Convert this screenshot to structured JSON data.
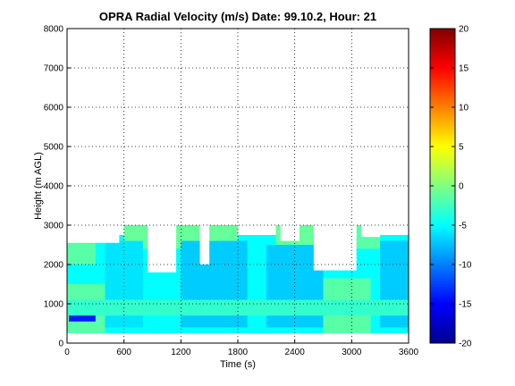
{
  "chart_data": {
    "type": "heatmap",
    "title": "OPRA Radial Velocity (m/s)  Date: 99.10.2, Hour: 21",
    "xlabel": "Time (s)",
    "ylabel": "Height (m AGL)",
    "xlim": [
      0,
      3600
    ],
    "ylim": [
      0,
      8000
    ],
    "xticks": [
      "0",
      "600",
      "1200",
      "1800",
      "2400",
      "3000",
      "3600"
    ],
    "yticks": [
      "0",
      "1000",
      "2000",
      "3000",
      "4000",
      "5000",
      "6000",
      "7000",
      "8000"
    ],
    "grid": true,
    "colorbar": {
      "vmin": -20,
      "vmax": 20,
      "ticks": [
        "20",
        "15",
        "10",
        "5",
        "0",
        "-5",
        "-10",
        "-15",
        "-20"
      ],
      "colormap": "jet"
    },
    "regions": [
      {
        "t0": 0,
        "t1": 3600,
        "h0": 250,
        "h1": 2750,
        "velocity": -5
      },
      {
        "t0": 0,
        "t1": 400,
        "h0": 250,
        "h1": 1500,
        "velocity": -1.5
      },
      {
        "t0": 0,
        "t1": 300,
        "h0": 2000,
        "h1": 2600,
        "velocity": -1.5
      },
      {
        "t0": 600,
        "t1": 1800,
        "h0": 2400,
        "h1": 3000,
        "velocity": -1
      },
      {
        "t0": 2200,
        "t1": 2700,
        "h0": 2400,
        "h1": 3000,
        "velocity": -1
      },
      {
        "t0": 2700,
        "t1": 3200,
        "h0": 250,
        "h1": 1650,
        "velocity": -1.5
      },
      {
        "t0": 3050,
        "t1": 3300,
        "h0": 2400,
        "h1": 3000,
        "velocity": -1.5
      },
      {
        "t0": 400,
        "t1": 800,
        "h0": 400,
        "h1": 2600,
        "velocity": -6
      },
      {
        "t0": 1200,
        "t1": 1900,
        "h0": 400,
        "h1": 2600,
        "velocity": -7
      },
      {
        "t0": 2100,
        "t1": 2700,
        "h0": 400,
        "h1": 2500,
        "velocity": -7
      },
      {
        "t0": 3300,
        "t1": 3600,
        "h0": 400,
        "h1": 2600,
        "velocity": -7
      },
      {
        "t0": 0,
        "t1": 3600,
        "h0": 700,
        "h1": 1100,
        "velocity": -3
      },
      {
        "t0": 20,
        "t1": 300,
        "h0": 550,
        "h1": 700,
        "velocity": -14
      }
    ],
    "gaps": [
      {
        "t0": 0,
        "t1": 550,
        "h0": 2550,
        "h1": 3000
      },
      {
        "t0": 850,
        "t1": 1150,
        "h0": 1800,
        "h1": 3000
      },
      {
        "t0": 1400,
        "t1": 1500,
        "h0": 2000,
        "h1": 3000
      },
      {
        "t0": 2250,
        "t1": 2450,
        "h0": 2600,
        "h1": 3000
      },
      {
        "t0": 2600,
        "t1": 3050,
        "h0": 1850,
        "h1": 3000
      },
      {
        "t0": 3100,
        "t1": 3300,
        "h0": 2700,
        "h1": 3000
      }
    ]
  }
}
